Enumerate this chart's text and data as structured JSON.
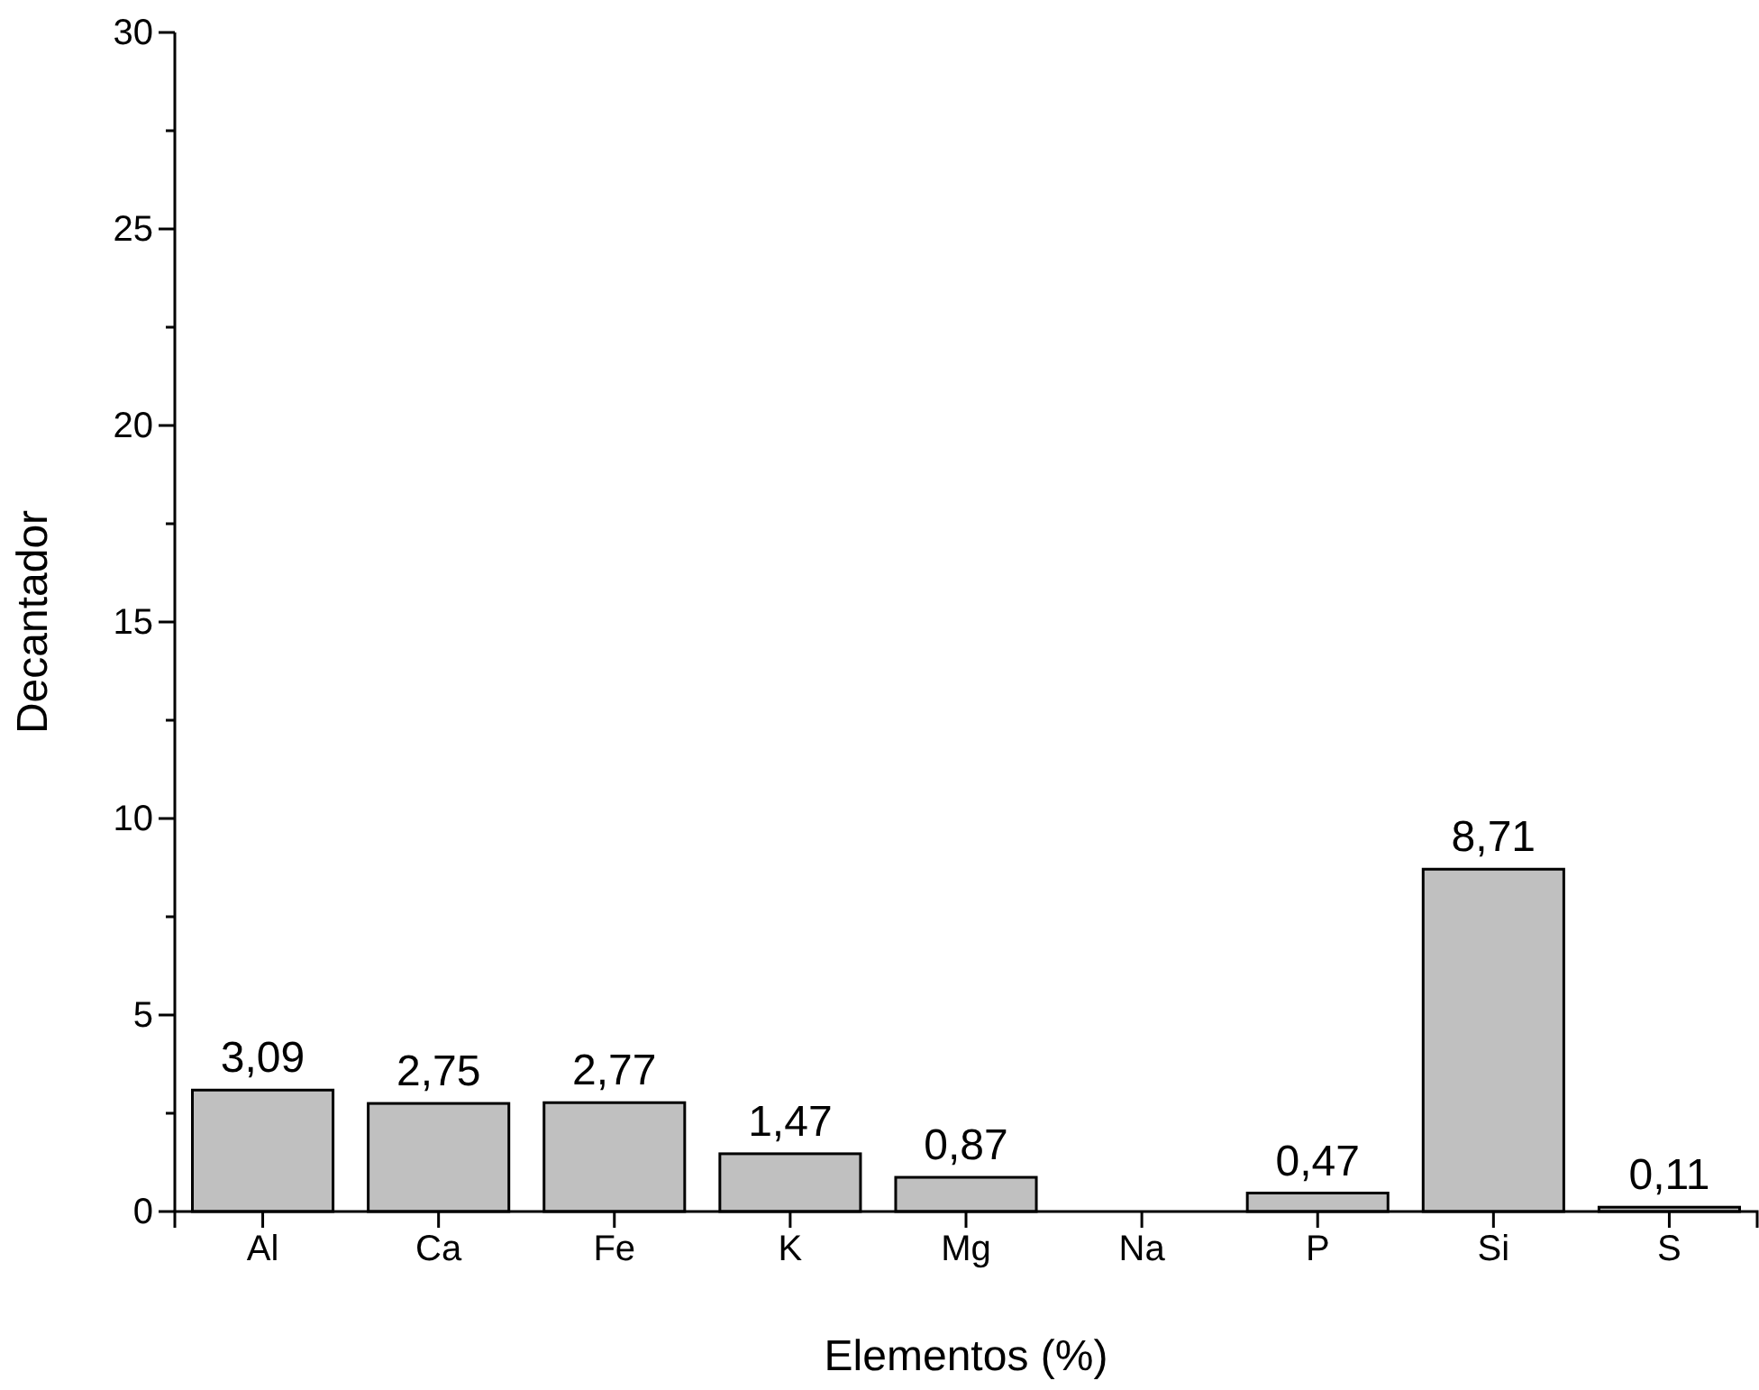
{
  "chart_data": {
    "type": "bar",
    "xlabel": "Elementos (%)",
    "ylabel": "Decantador",
    "categories": [
      "Al",
      "Ca",
      "Fe",
      "K",
      "Mg",
      "Na",
      "P",
      "Si",
      "S"
    ],
    "values": [
      3.09,
      2.75,
      2.77,
      1.47,
      0.87,
      null,
      0.47,
      8.71,
      0.11
    ],
    "value_labels": [
      "3,09",
      "2,75",
      "2,77",
      "1,47",
      "0,87",
      null,
      "0,47",
      "8,71",
      "0,11"
    ],
    "color": "#c0c0c0",
    "ylim": [
      0,
      30
    ],
    "yticks": [
      0,
      {
        "value": 2.5,
        "label": null
      },
      5,
      {
        "value": 7.5,
        "label": null
      },
      10,
      {
        "value": 12.5,
        "label": null
      },
      15,
      {
        "value": 17.5,
        "label": null
      },
      20,
      {
        "value": 22.5,
        "label": null
      },
      25,
      {
        "value": 27.5,
        "label": null
      },
      30
    ],
    "grid": false
  }
}
